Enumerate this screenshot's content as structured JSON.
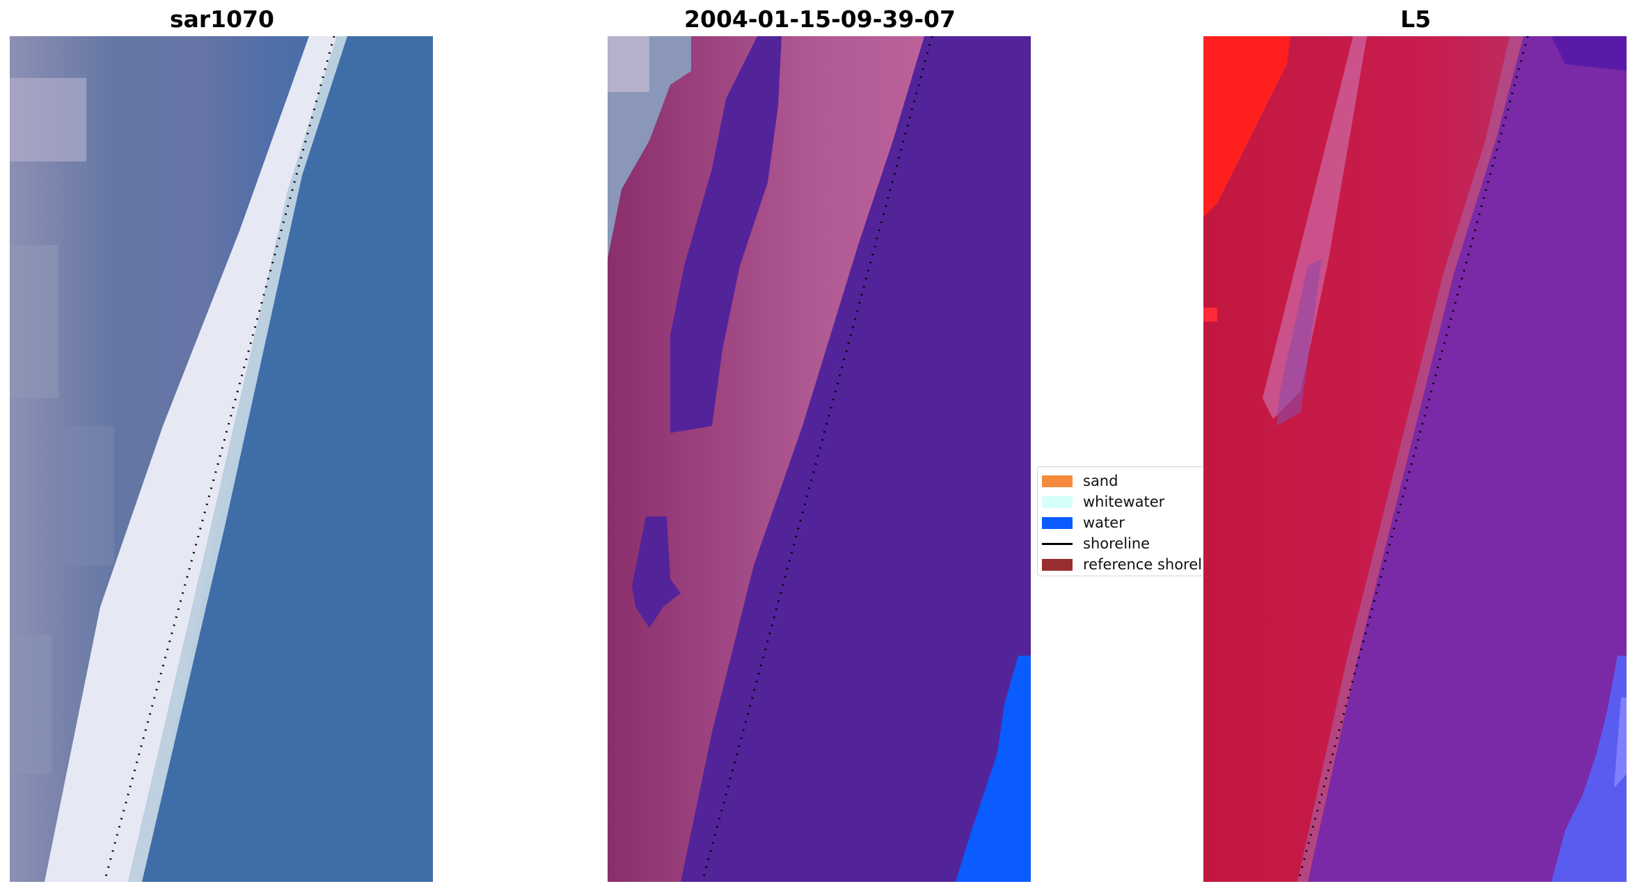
{
  "panels": [
    {
      "title": "sar1070"
    },
    {
      "title": "2004-01-15-09-39-07"
    },
    {
      "title": "L5"
    }
  ],
  "legend": {
    "items": [
      {
        "label": "sand",
        "color": "#f58a3d",
        "kind": "patch"
      },
      {
        "label": "whitewater",
        "color": "#d5fffb",
        "kind": "patch"
      },
      {
        "label": "water",
        "color": "#0a5cff",
        "kind": "patch"
      },
      {
        "label": "shoreline",
        "color": "#000000",
        "kind": "line"
      },
      {
        "label": "reference shoreline",
        "color": "#9a2e2e",
        "kind": "patch"
      }
    ]
  },
  "colors": {
    "rgb_water": "#3f6ea6",
    "rgb_whitewater": "#eef0f7",
    "rgb_beach": "#6b78a6",
    "class_water_overlay": "#53239a",
    "class_sand_overlay": "#9c3a78",
    "class_water_edge": "#0a5cff",
    "index_red": "#c2183f",
    "index_purple": "#7a2aa6",
    "index_blue": "#5a5cf0",
    "shoreline": "#000000"
  }
}
